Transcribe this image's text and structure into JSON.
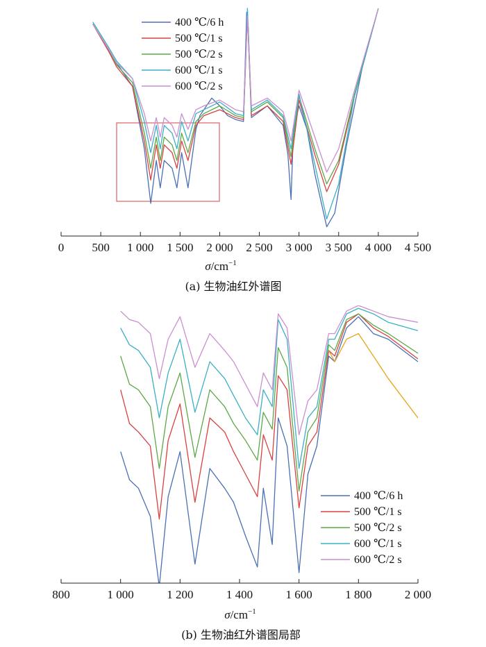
{
  "chart_data": [
    {
      "type": "line",
      "title": "",
      "xlabel": "σ/cm⁻¹",
      "ylabel": "",
      "xlim": [
        0,
        4500
      ],
      "x_ticks": [
        "0",
        "500",
        "1 000",
        "1 500",
        "2 000",
        "2 500",
        "3 000",
        "3 500",
        "4 000",
        "4 500"
      ],
      "caption": "(a) 生物油红外谱图",
      "highlight_box": {
        "x_range": [
          700,
          2000
        ]
      },
      "legend_position": "top-center",
      "series": [
        {
          "name": "400 ℃/6 h",
          "color": "#4a6fb5",
          "x": [
            400,
            600,
            700,
            900,
            1050,
            1130,
            1200,
            1250,
            1300,
            1400,
            1460,
            1520,
            1600,
            1700,
            1750,
            1800,
            1900,
            2000,
            2100,
            2200,
            2300,
            2340,
            2360,
            2400,
            2600,
            2800,
            2860,
            2900,
            2930,
            3000,
            3100,
            3200,
            3350,
            3450,
            3600,
            3800,
            4000
          ],
          "y": [
            0.08,
            0.22,
            0.28,
            0.4,
            0.72,
            1.0,
            0.78,
            0.92,
            0.78,
            0.82,
            0.92,
            0.74,
            0.92,
            0.62,
            0.55,
            0.52,
            0.46,
            0.5,
            0.55,
            0.57,
            0.58,
            0.02,
            0.1,
            0.56,
            0.5,
            0.6,
            0.75,
            0.98,
            0.62,
            0.5,
            0.62,
            0.85,
            1.12,
            1.05,
            0.7,
            0.3,
            0.0
          ]
        },
        {
          "name": "500 ℃/1 s",
          "color": "#d94040",
          "x": [
            400,
            600,
            700,
            900,
            1050,
            1130,
            1200,
            1250,
            1300,
            1400,
            1460,
            1520,
            1600,
            1700,
            1800,
            2000,
            2200,
            2300,
            2350,
            2400,
            2600,
            2800,
            2900,
            3000,
            3200,
            3350,
            3500,
            3700,
            4000
          ],
          "y": [
            0.08,
            0.22,
            0.3,
            0.4,
            0.68,
            0.88,
            0.7,
            0.82,
            0.7,
            0.74,
            0.82,
            0.68,
            0.78,
            0.6,
            0.55,
            0.52,
            0.56,
            0.57,
            0.04,
            0.55,
            0.5,
            0.58,
            0.8,
            0.47,
            0.75,
            0.94,
            0.8,
            0.45,
            0.0
          ]
        },
        {
          "name": "500 ℃/2 s",
          "color": "#5aa845",
          "x": [
            400,
            600,
            700,
            900,
            1050,
            1130,
            1200,
            1250,
            1300,
            1400,
            1460,
            1520,
            1600,
            1700,
            1800,
            2000,
            2200,
            2300,
            2350,
            2400,
            2600,
            2800,
            2900,
            3000,
            3200,
            3350,
            3500,
            3700,
            4000
          ],
          "y": [
            0.08,
            0.21,
            0.29,
            0.38,
            0.64,
            0.82,
            0.66,
            0.78,
            0.66,
            0.7,
            0.78,
            0.64,
            0.74,
            0.58,
            0.54,
            0.5,
            0.55,
            0.56,
            0.03,
            0.53,
            0.48,
            0.56,
            0.76,
            0.45,
            0.72,
            0.9,
            0.78,
            0.44,
            0.0
          ]
        },
        {
          "name": "600 ℃/1 s",
          "color": "#3aafc5",
          "x": [
            400,
            600,
            700,
            900,
            1050,
            1130,
            1200,
            1250,
            1300,
            1400,
            1460,
            1520,
            1600,
            1700,
            1800,
            2000,
            2200,
            2300,
            2350,
            2400,
            2600,
            2800,
            2900,
            3000,
            3200,
            3350,
            3500,
            3700,
            4000
          ],
          "y": [
            0.07,
            0.2,
            0.27,
            0.36,
            0.58,
            0.74,
            0.6,
            0.72,
            0.6,
            0.64,
            0.72,
            0.58,
            0.68,
            0.54,
            0.52,
            0.48,
            0.54,
            0.55,
            0.0,
            0.52,
            0.47,
            0.55,
            0.72,
            0.44,
            0.8,
            1.08,
            0.9,
            0.45,
            0.0
          ]
        },
        {
          "name": "600 ℃/2 s",
          "color": "#c98fd0",
          "x": [
            400,
            600,
            700,
            900,
            1050,
            1130,
            1200,
            1250,
            1300,
            1400,
            1460,
            1520,
            1600,
            1700,
            1800,
            2000,
            2200,
            2300,
            2350,
            2400,
            2600,
            2800,
            2900,
            3000,
            3200,
            3350,
            3500,
            3700,
            4000
          ],
          "y": [
            0.08,
            0.21,
            0.28,
            0.36,
            0.54,
            0.68,
            0.56,
            0.66,
            0.56,
            0.6,
            0.66,
            0.54,
            0.62,
            0.52,
            0.5,
            0.47,
            0.52,
            0.53,
            0.04,
            0.5,
            0.46,
            0.53,
            0.68,
            0.42,
            0.66,
            0.84,
            0.72,
            0.42,
            0.0
          ]
        }
      ]
    },
    {
      "type": "line",
      "title": "",
      "xlabel": "σ/cm⁻¹",
      "ylabel": "",
      "xlim": [
        800,
        2000
      ],
      "x_ticks": [
        "800",
        "1 000",
        "1 200",
        "1 400",
        "1 600",
        "1 800",
        "2 000"
      ],
      "caption": "(b) 生物油红外谱图局部",
      "legend_position": "bottom-right",
      "series": [
        {
          "name": "400 ℃/6 h",
          "color": "#4a6fb5",
          "x": [
            1000,
            1030,
            1060,
            1100,
            1130,
            1160,
            1200,
            1250,
            1300,
            1350,
            1380,
            1420,
            1460,
            1480,
            1510,
            1530,
            1560,
            1600,
            1630,
            1660,
            1700,
            1720,
            1760,
            1800,
            1850,
            1900,
            2000
          ],
          "y": [
            0.52,
            0.62,
            0.65,
            0.75,
            1.0,
            0.68,
            0.52,
            0.92,
            0.58,
            0.65,
            0.7,
            0.82,
            0.93,
            0.65,
            0.85,
            0.4,
            0.5,
            0.95,
            0.6,
            0.5,
            0.18,
            0.2,
            0.08,
            0.04,
            0.1,
            0.12,
            0.2
          ]
        },
        {
          "name": "500 ℃/1 s",
          "color": "#d94040",
          "x": [
            1000,
            1030,
            1060,
            1100,
            1130,
            1160,
            1200,
            1250,
            1300,
            1350,
            1380,
            1420,
            1460,
            1480,
            1510,
            1530,
            1560,
            1600,
            1630,
            1660,
            1700,
            1720,
            1760,
            1800,
            1850,
            1900,
            2000
          ],
          "y": [
            0.3,
            0.42,
            0.45,
            0.5,
            0.76,
            0.48,
            0.35,
            0.7,
            0.4,
            0.45,
            0.52,
            0.6,
            0.68,
            0.46,
            0.55,
            0.25,
            0.3,
            0.72,
            0.5,
            0.45,
            0.16,
            0.18,
            0.06,
            0.03,
            0.08,
            0.11,
            0.19
          ]
        },
        {
          "name": "500 ℃/2 s",
          "color": "#5aa845",
          "x": [
            1000,
            1030,
            1060,
            1100,
            1130,
            1160,
            1200,
            1250,
            1300,
            1350,
            1380,
            1420,
            1460,
            1480,
            1510,
            1530,
            1560,
            1600,
            1630,
            1660,
            1700,
            1720,
            1760,
            1800,
            1850,
            1900,
            2000
          ],
          "y": [
            0.18,
            0.28,
            0.3,
            0.36,
            0.58,
            0.36,
            0.24,
            0.54,
            0.3,
            0.36,
            0.42,
            0.48,
            0.55,
            0.38,
            0.44,
            0.15,
            0.22,
            0.66,
            0.45,
            0.4,
            0.14,
            0.16,
            0.05,
            0.03,
            0.07,
            0.1,
            0.17
          ]
        },
        {
          "name": "600 ℃/1 s",
          "color": "#3aafc5",
          "x": [
            1000,
            1030,
            1060,
            1100,
            1130,
            1160,
            1200,
            1250,
            1300,
            1350,
            1380,
            1420,
            1460,
            1480,
            1510,
            1530,
            1560,
            1600,
            1630,
            1660,
            1700,
            1720,
            1760,
            1800,
            1850,
            1900,
            2000
          ],
          "y": [
            0.08,
            0.14,
            0.16,
            0.22,
            0.4,
            0.24,
            0.12,
            0.38,
            0.2,
            0.26,
            0.32,
            0.4,
            0.46,
            0.3,
            0.36,
            0.05,
            0.12,
            0.58,
            0.4,
            0.36,
            0.12,
            0.12,
            0.03,
            0.01,
            0.03,
            0.06,
            0.09
          ]
        },
        {
          "name": "600 ℃/2 s",
          "color": "#c98fd0",
          "x": [
            1000,
            1030,
            1060,
            1100,
            1130,
            1160,
            1200,
            1250,
            1300,
            1350,
            1380,
            1420,
            1460,
            1480,
            1510,
            1530,
            1560,
            1600,
            1630,
            1660,
            1700,
            1720,
            1760,
            1800,
            1850,
            1900,
            2000
          ],
          "y": [
            0.02,
            0.05,
            0.06,
            0.1,
            0.26,
            0.12,
            0.04,
            0.22,
            0.1,
            0.16,
            0.2,
            0.28,
            0.36,
            0.24,
            0.3,
            0.03,
            0.08,
            0.46,
            0.34,
            0.3,
            0.1,
            0.1,
            0.02,
            0.0,
            0.02,
            0.04,
            0.06
          ]
        },
        {
          "name": "",
          "color": "#e8a317",
          "x": [
            1700,
            1720,
            1760,
            1800,
            1850,
            1900,
            2000
          ],
          "y": [
            0.16,
            0.2,
            0.12,
            0.1,
            0.18,
            0.26,
            0.4
          ]
        }
      ]
    }
  ],
  "captions": {
    "a": "(a) 生物油红外谱图",
    "b": "(b) 生物油红外谱图局部"
  },
  "xlabel_a_main": "σ/cm",
  "xlabel_a_sup": "−1",
  "xlabel_b_main": "σ/cm",
  "xlabel_b_sup": "−1"
}
